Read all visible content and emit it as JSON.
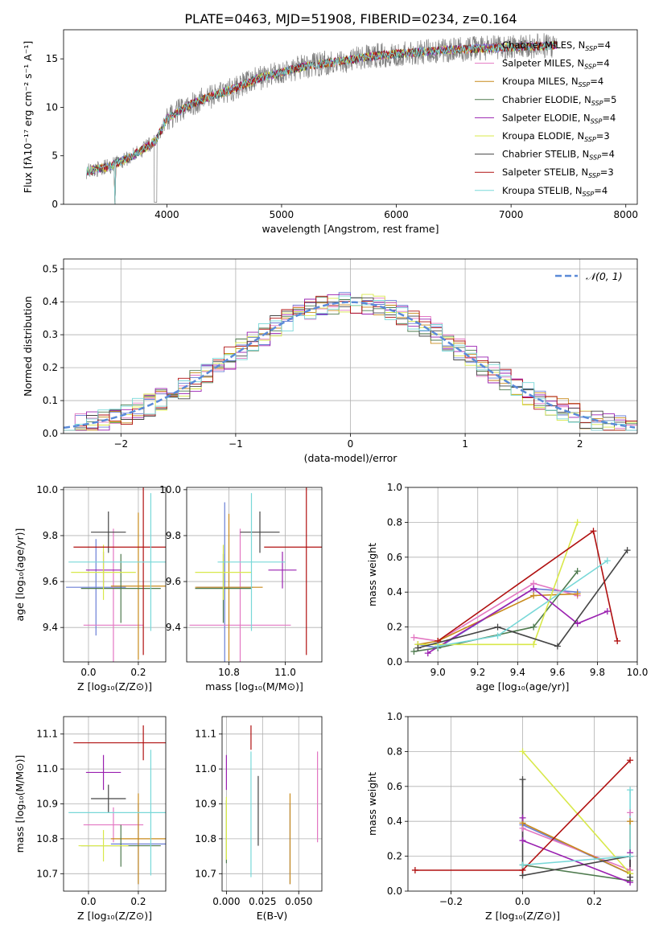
{
  "title": "PLATE=0463, MJD=51908, FIBERID=0234, z=0.164",
  "colors": {
    "Chabrier MILES": "#6a7fd6",
    "Salpeter MILES": "#e377c2",
    "Kroupa MILES": "#c88a1b",
    "Chabrier ELODIE": "#4e7a4e",
    "Salpeter ELODIE": "#9a20b0",
    "Kroupa ELODIE": "#d8e84a",
    "Chabrier STELIB": "#454545",
    "Salpeter STELIB": "#b01010",
    "Kroupa STELIB": "#78d8d8",
    "normal": "#5a8ad8"
  },
  "legend_models": [
    {
      "name": "Chabrier MILES",
      "label": "Chabrier MILES, N",
      "sub": "SSP",
      "tail": "=4"
    },
    {
      "name": "Salpeter MILES",
      "label": "Salpeter MILES, N",
      "sub": "SSP",
      "tail": "=4"
    },
    {
      "name": "Kroupa MILES",
      "label": "Kroupa MILES, N",
      "sub": "SSP",
      "tail": "=4"
    },
    {
      "name": "Chabrier ELODIE",
      "label": "Chabrier ELODIE, N",
      "sub": "SSP",
      "tail": "=5"
    },
    {
      "name": "Salpeter ELODIE",
      "label": "Salpeter ELODIE, N",
      "sub": "SSP",
      "tail": "=4"
    },
    {
      "name": "Kroupa ELODIE",
      "label": "Kroupa ELODIE, N",
      "sub": "SSP",
      "tail": "=3"
    },
    {
      "name": "Chabrier STELIB",
      "label": "Chabrier STELIB, N",
      "sub": "SSP",
      "tail": "=4"
    },
    {
      "name": "Salpeter STELIB",
      "label": "Salpeter STELIB, N",
      "sub": "SSP",
      "tail": "=3"
    },
    {
      "name": "Kroupa STELIB",
      "label": "Kroupa STELIB, N",
      "sub": "SSP",
      "tail": "=4"
    }
  ],
  "chart_data": [
    {
      "id": "spectrum",
      "type": "line",
      "xlabel": "wavelength [Angstrom, rest frame]",
      "ylabel": "Flux [fλ10⁻¹⁷ erg cm⁻² s⁻¹ A⁻¹]",
      "xlim": [
        3100,
        8100
      ],
      "ylim": [
        0,
        18
      ],
      "xticks": [
        4000,
        5000,
        6000,
        7000,
        8000
      ],
      "yticks": [
        0,
        5,
        10,
        15
      ],
      "legend": "upper right",
      "continuum": {
        "x": [
          3300,
          3500,
          3700,
          3900,
          4000,
          4200,
          4400,
          4600,
          4800,
          5000,
          5200,
          5400,
          5600,
          5800,
          6000,
          6200,
          6400,
          6600,
          6800,
          7000,
          7200,
          7400
        ],
        "y": [
          3.4,
          3.9,
          5.0,
          6.5,
          8.8,
          10.3,
          11.2,
          12.0,
          13.0,
          13.6,
          14.2,
          14.6,
          14.9,
          15.3,
          15.5,
          15.7,
          15.9,
          16.0,
          16.1,
          16.2,
          16.3,
          16.4
        ]
      }
    },
    {
      "id": "residuals",
      "type": "line",
      "xlabel": "(data-model)/error",
      "ylabel": "Normed distribution",
      "xlim": [
        -2.5,
        2.5
      ],
      "ylim": [
        0,
        0.53
      ],
      "xticks": [
        -2,
        -1,
        0,
        1,
        2
      ],
      "yticks": [
        0.0,
        0.1,
        0.2,
        0.3,
        0.4,
        0.5
      ],
      "grid": true,
      "legend": "upper right",
      "normal_label": "𝒩(0, 1)",
      "bin_width": 0.1
    },
    {
      "id": "age-vs-Z",
      "type": "scatter",
      "xlabel": "Z [log₁₀(Z/Z⊙)]",
      "ylabel": "age  [log₁₀(age/yr)]",
      "xlim": [
        -0.1,
        0.31
      ],
      "ylim": [
        9.25,
        10.01
      ],
      "xticks": [
        0.0,
        0.2
      ],
      "yticks": [
        9.4,
        9.6,
        9.8,
        10.0
      ],
      "grid": true,
      "points": [
        {
          "model": "Chabrier MILES",
          "x": 0.03,
          "y": 9.575,
          "xerr": 0.12,
          "yerr": 0.21
        },
        {
          "model": "Salpeter MILES",
          "x": 0.1,
          "y": 9.41,
          "xerr": 0.12,
          "yerr": 0.42
        },
        {
          "model": "Kroupa MILES",
          "x": 0.2,
          "y": 9.58,
          "xerr": 0.11,
          "yerr": 0.32
        },
        {
          "model": "Chabrier ELODIE",
          "x": 0.13,
          "y": 9.57,
          "xerr": 0.16,
          "yerr": 0.15
        },
        {
          "model": "Salpeter ELODIE",
          "x": 0.06,
          "y": 9.65,
          "xerr": 0.07,
          "yerr": 0.08
        },
        {
          "model": "Kroupa ELODIE",
          "x": 0.06,
          "y": 9.64,
          "xerr": 0.13,
          "yerr": 0.12
        },
        {
          "model": "Chabrier STELIB",
          "x": 0.08,
          "y": 9.815,
          "xerr": 0.07,
          "yerr": 0.09
        },
        {
          "model": "Salpeter STELIB",
          "x": 0.22,
          "y": 9.75,
          "xerr": 0.28,
          "yerr": 0.47
        },
        {
          "model": "Kroupa STELIB",
          "x": 0.25,
          "y": 9.685,
          "xerr": 0.33,
          "yerr": 0.3
        }
      ]
    },
    {
      "id": "age-vs-mass",
      "type": "scatter",
      "xlabel": "mass [log₁₀(M/M⊙)]",
      "ylabel": "",
      "xlim": [
        10.65,
        11.13
      ],
      "ylim": [
        9.25,
        10.01
      ],
      "xticks": [
        10.8,
        11.0
      ],
      "yticks": [
        9.4,
        9.6,
        9.8,
        10.0
      ],
      "grid": true,
      "points": [
        {
          "model": "Chabrier MILES",
          "x": 10.785,
          "y": 9.575,
          "xerr": 0.1,
          "yerr": 0.37
        },
        {
          "model": "Salpeter MILES",
          "x": 10.84,
          "y": 9.41,
          "xerr": 0.18,
          "yerr": 0.42
        },
        {
          "model": "Kroupa MILES",
          "x": 10.8,
          "y": 9.575,
          "xerr": 0.12,
          "yerr": 0.32
        },
        {
          "model": "Chabrier ELODIE",
          "x": 10.78,
          "y": 9.57,
          "xerr": 0.1,
          "yerr": 0.15
        },
        {
          "model": "Salpeter ELODIE",
          "x": 10.99,
          "y": 9.65,
          "xerr": 0.05,
          "yerr": 0.08
        },
        {
          "model": "Kroupa ELODIE",
          "x": 10.78,
          "y": 9.64,
          "xerr": 0.1,
          "yerr": 0.12
        },
        {
          "model": "Chabrier STELIB",
          "x": 10.91,
          "y": 9.815,
          "xerr": 0.07,
          "yerr": 0.09
        },
        {
          "model": "Salpeter STELIB",
          "x": 11.075,
          "y": 9.75,
          "xerr": 0.15,
          "yerr": 0.47
        },
        {
          "model": "Kroupa STELIB",
          "x": 10.88,
          "y": 9.685,
          "xerr": 0.12,
          "yerr": 0.3
        }
      ]
    },
    {
      "id": "weight-vs-age",
      "type": "line",
      "xlabel": "age  [log₁₀(age/yr)]",
      "ylabel": "mass weight",
      "xlim": [
        8.85,
        10.0
      ],
      "ylim": [
        0,
        1.0
      ],
      "xticks": [
        9.0,
        9.2,
        9.4,
        9.6,
        9.8,
        10.0
      ],
      "yticks": [
        0.0,
        0.2,
        0.4,
        0.6,
        0.8,
        1.0
      ],
      "grid": true,
      "series": [
        {
          "model": "Chabrier MILES",
          "x": [
            8.9,
            9.0,
            9.48,
            9.7
          ],
          "y": [
            0.1,
            0.08,
            0.42,
            0.4
          ]
        },
        {
          "model": "Salpeter MILES",
          "x": [
            8.88,
            9.0,
            9.48,
            9.7
          ],
          "y": [
            0.14,
            0.12,
            0.45,
            0.38
          ]
        },
        {
          "model": "Kroupa MILES",
          "x": [
            8.9,
            9.0,
            9.48,
            9.7
          ],
          "y": [
            0.1,
            0.12,
            0.38,
            0.39
          ]
        },
        {
          "model": "Chabrier ELODIE",
          "x": [
            8.88,
            9.0,
            9.48,
            9.7
          ],
          "y": [
            0.06,
            0.08,
            0.2,
            0.52
          ]
        },
        {
          "model": "Salpeter ELODIE",
          "x": [
            8.95,
            9.48,
            9.7,
            9.85
          ],
          "y": [
            0.05,
            0.42,
            0.22,
            0.29
          ]
        },
        {
          "model": "Kroupa ELODIE",
          "x": [
            8.9,
            9.48,
            9.7
          ],
          "y": [
            0.1,
            0.1,
            0.8
          ]
        },
        {
          "model": "Chabrier STELIB",
          "x": [
            8.9,
            9.3,
            9.6,
            9.95
          ],
          "y": [
            0.08,
            0.2,
            0.09,
            0.64
          ]
        },
        {
          "model": "Salpeter STELIB",
          "x": [
            9.0,
            9.78,
            9.9
          ],
          "y": [
            0.12,
            0.75,
            0.12
          ]
        },
        {
          "model": "Kroupa STELIB",
          "x": [
            9.0,
            9.3,
            9.85
          ],
          "y": [
            0.09,
            0.15,
            0.58
          ]
        }
      ]
    },
    {
      "id": "mass-vs-Z",
      "type": "scatter",
      "xlabel": "Z [log₁₀(Z/Z⊙)]",
      "ylabel": "mass [log₁₀(M/M⊙)]",
      "xlim": [
        -0.1,
        0.31
      ],
      "ylim": [
        10.65,
        11.15
      ],
      "xticks": [
        0.0,
        0.2
      ],
      "yticks": [
        10.7,
        10.8,
        10.9,
        11.0,
        11.1
      ],
      "grid": true,
      "points": [
        {
          "model": "Chabrier MILES",
          "x": 0.2,
          "y": 10.785,
          "xerr": 0.11,
          "yerr": 0.115
        },
        {
          "model": "Salpeter MILES",
          "x": 0.1,
          "y": 10.84,
          "xerr": 0.12,
          "yerr": 0.05
        },
        {
          "model": "Kroupa MILES",
          "x": 0.2,
          "y": 10.8,
          "xerr": 0.11,
          "yerr": 0.13
        },
        {
          "model": "Chabrier ELODIE",
          "x": 0.13,
          "y": 10.78,
          "xerr": 0.16,
          "yerr": 0.06
        },
        {
          "model": "Salpeter ELODIE",
          "x": 0.06,
          "y": 10.99,
          "xerr": 0.07,
          "yerr": 0.05
        },
        {
          "model": "Kroupa ELODIE",
          "x": 0.06,
          "y": 10.78,
          "xerr": 0.1,
          "yerr": 0.045
        },
        {
          "model": "Chabrier STELIB",
          "x": 0.08,
          "y": 10.915,
          "xerr": 0.07,
          "yerr": 0.04
        },
        {
          "model": "Salpeter STELIB",
          "x": 0.22,
          "y": 11.075,
          "xerr": 0.28,
          "yerr": 0.05
        },
        {
          "model": "Kroupa STELIB",
          "x": 0.25,
          "y": 10.875,
          "xerr": 0.33,
          "yerr": 0.18
        }
      ]
    },
    {
      "id": "mass-vs-ebv",
      "type": "scatter",
      "xlabel": "E(B-V)",
      "ylabel": "",
      "xlim": [
        -0.003,
        0.066
      ],
      "ylim": [
        10.65,
        11.15
      ],
      "xticks": [
        0.0,
        0.025,
        0.05
      ],
      "yticks": [
        10.7,
        10.8,
        10.9,
        11.0,
        11.1
      ],
      "grid": true,
      "points": [
        {
          "model": "Chabrier MILES",
          "x": 0.044,
          "y": 10.785,
          "xerr": 0,
          "yerr": 0.115
        },
        {
          "model": "Salpeter MILES",
          "x": 0.063,
          "y": 10.92,
          "xerr": 0,
          "yerr": 0.13
        },
        {
          "model": "Kroupa MILES",
          "x": 0.044,
          "y": 10.8,
          "xerr": 0,
          "yerr": 0.13
        },
        {
          "model": "Chabrier ELODIE",
          "x": 0.0,
          "y": 10.82,
          "xerr": 0,
          "yerr": 0.09
        },
        {
          "model": "Salpeter ELODIE",
          "x": 0.0,
          "y": 10.99,
          "xerr": 0,
          "yerr": 0.05
        },
        {
          "model": "Kroupa ELODIE",
          "x": 0.0,
          "y": 10.83,
          "xerr": 0,
          "yerr": 0.09
        },
        {
          "model": "Chabrier STELIB",
          "x": 0.022,
          "y": 10.88,
          "xerr": 0,
          "yerr": 0.1
        },
        {
          "model": "Salpeter STELIB",
          "x": 0.017,
          "y": 11.09,
          "xerr": 0,
          "yerr": 0.035
        },
        {
          "model": "Kroupa STELIB",
          "x": 0.017,
          "y": 10.87,
          "xerr": 0,
          "yerr": 0.18
        }
      ]
    },
    {
      "id": "weight-vs-Z",
      "type": "line",
      "xlabel": "Z [log₁₀(Z/Z⊙)]",
      "ylabel": "mass weight",
      "xlim": [
        -0.32,
        0.32
      ],
      "ylim": [
        0,
        1.0
      ],
      "xticks": [
        -0.2,
        0.0,
        0.2
      ],
      "yticks": [
        0.0,
        0.2,
        0.4,
        0.6,
        0.8,
        1.0
      ],
      "grid": true,
      "series": [
        {
          "model": "Chabrier MILES",
          "x": [
            0.0,
            0.3
          ],
          "y": [
            0.38,
            0.1
          ]
        },
        {
          "model": "Salpeter MILES",
          "x": [
            0.0,
            0.3,
            0.3
          ],
          "y": [
            0.36,
            0.12,
            0.45
          ]
        },
        {
          "model": "Kroupa MILES",
          "x": [
            0.0,
            0.3,
            0.3
          ],
          "y": [
            0.39,
            0.1,
            0.4
          ]
        },
        {
          "model": "Chabrier ELODIE",
          "x": [
            0.0,
            0.3,
            0.3
          ],
          "y": [
            0.15,
            0.06,
            0.2
          ]
        },
        {
          "model": "Salpeter ELODIE",
          "x": [
            0.0,
            0.0,
            0.3,
            0.3
          ],
          "y": [
            0.42,
            0.29,
            0.05,
            0.22
          ]
        },
        {
          "model": "Kroupa ELODIE",
          "x": [
            0.0,
            0.3
          ],
          "y": [
            0.8,
            0.1
          ]
        },
        {
          "model": "Chabrier STELIB",
          "x": [
            0.0,
            0.0,
            0.3,
            0.3
          ],
          "y": [
            0.64,
            0.09,
            0.2,
            0.08
          ]
        },
        {
          "model": "Salpeter STELIB",
          "x": [
            -0.3,
            0.0,
            0.3
          ],
          "y": [
            0.12,
            0.12,
            0.75
          ]
        },
        {
          "model": "Kroupa STELIB",
          "x": [
            0.0,
            0.3,
            0.3
          ],
          "y": [
            0.15,
            0.2,
            0.58
          ]
        }
      ]
    }
  ]
}
